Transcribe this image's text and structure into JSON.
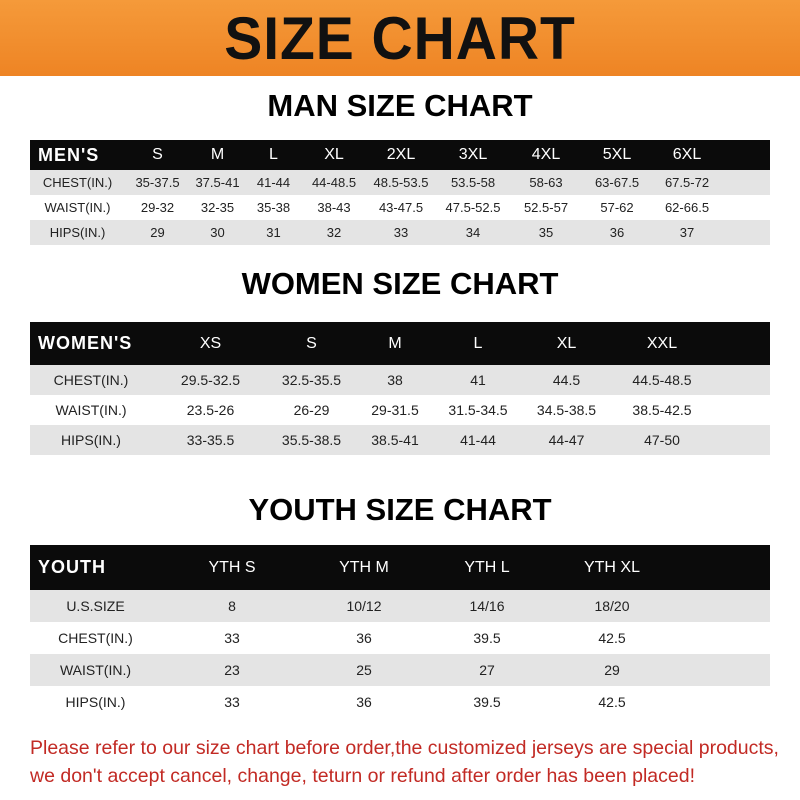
{
  "banner": {
    "title": "SIZE CHART",
    "color": "#f08a2a"
  },
  "men": {
    "title": "MAN SIZE CHART",
    "header": [
      "MEN'S",
      "S",
      "M",
      "L",
      "XL",
      "2XL",
      "3XL",
      "4XL",
      "5XL",
      "6XL"
    ],
    "rows": [
      [
        "CHEST(IN.)",
        "35-37.5",
        "37.5-41",
        "41-44",
        "44-48.5",
        "48.5-53.5",
        "53.5-58",
        "58-63",
        "63-67.5",
        "67.5-72"
      ],
      [
        "WAIST(IN.)",
        "29-32",
        "32-35",
        "35-38",
        "38-43",
        "43-47.5",
        "47.5-52.5",
        "52.5-57",
        "57-62",
        "62-66.5"
      ],
      [
        "HIPS(IN.)",
        "29",
        "30",
        "31",
        "32",
        "33",
        "34",
        "35",
        "36",
        "37"
      ]
    ]
  },
  "women": {
    "title": "WOMEN SIZE CHART",
    "header": [
      "WOMEN'S",
      "XS",
      "S",
      "M",
      "L",
      "XL",
      "XXL"
    ],
    "rows": [
      [
        "CHEST(IN.)",
        "29.5-32.5",
        "32.5-35.5",
        "38",
        "41",
        "44.5",
        "44.5-48.5"
      ],
      [
        "WAIST(IN.)",
        "23.5-26",
        "26-29",
        "29-31.5",
        "31.5-34.5",
        "34.5-38.5",
        "38.5-42.5"
      ],
      [
        "HIPS(IN.)",
        "33-35.5",
        "35.5-38.5",
        "38.5-41",
        "41-44",
        "44-47",
        "47-50"
      ]
    ]
  },
  "youth": {
    "title": "YOUTH SIZE CHART",
    "header": [
      "YOUTH",
      "YTH S",
      "YTH M",
      "YTH L",
      "YTH XL"
    ],
    "rows": [
      [
        "U.S.SIZE",
        "8",
        "10/12",
        "14/16",
        "18/20"
      ],
      [
        "CHEST(IN.)",
        "33",
        "36",
        "39.5",
        "42.5"
      ],
      [
        "WAIST(IN.)",
        "23",
        "25",
        "27",
        "29"
      ],
      [
        "HIPS(IN.)",
        "33",
        "36",
        "39.5",
        "42.5"
      ]
    ]
  },
  "note": {
    "line1": "Please refer to our size chart before order,the customized jerseys are special products,",
    "line2": "we don't accept cancel, change, teturn or refund after order has been placed!",
    "color": "#c22a24"
  }
}
